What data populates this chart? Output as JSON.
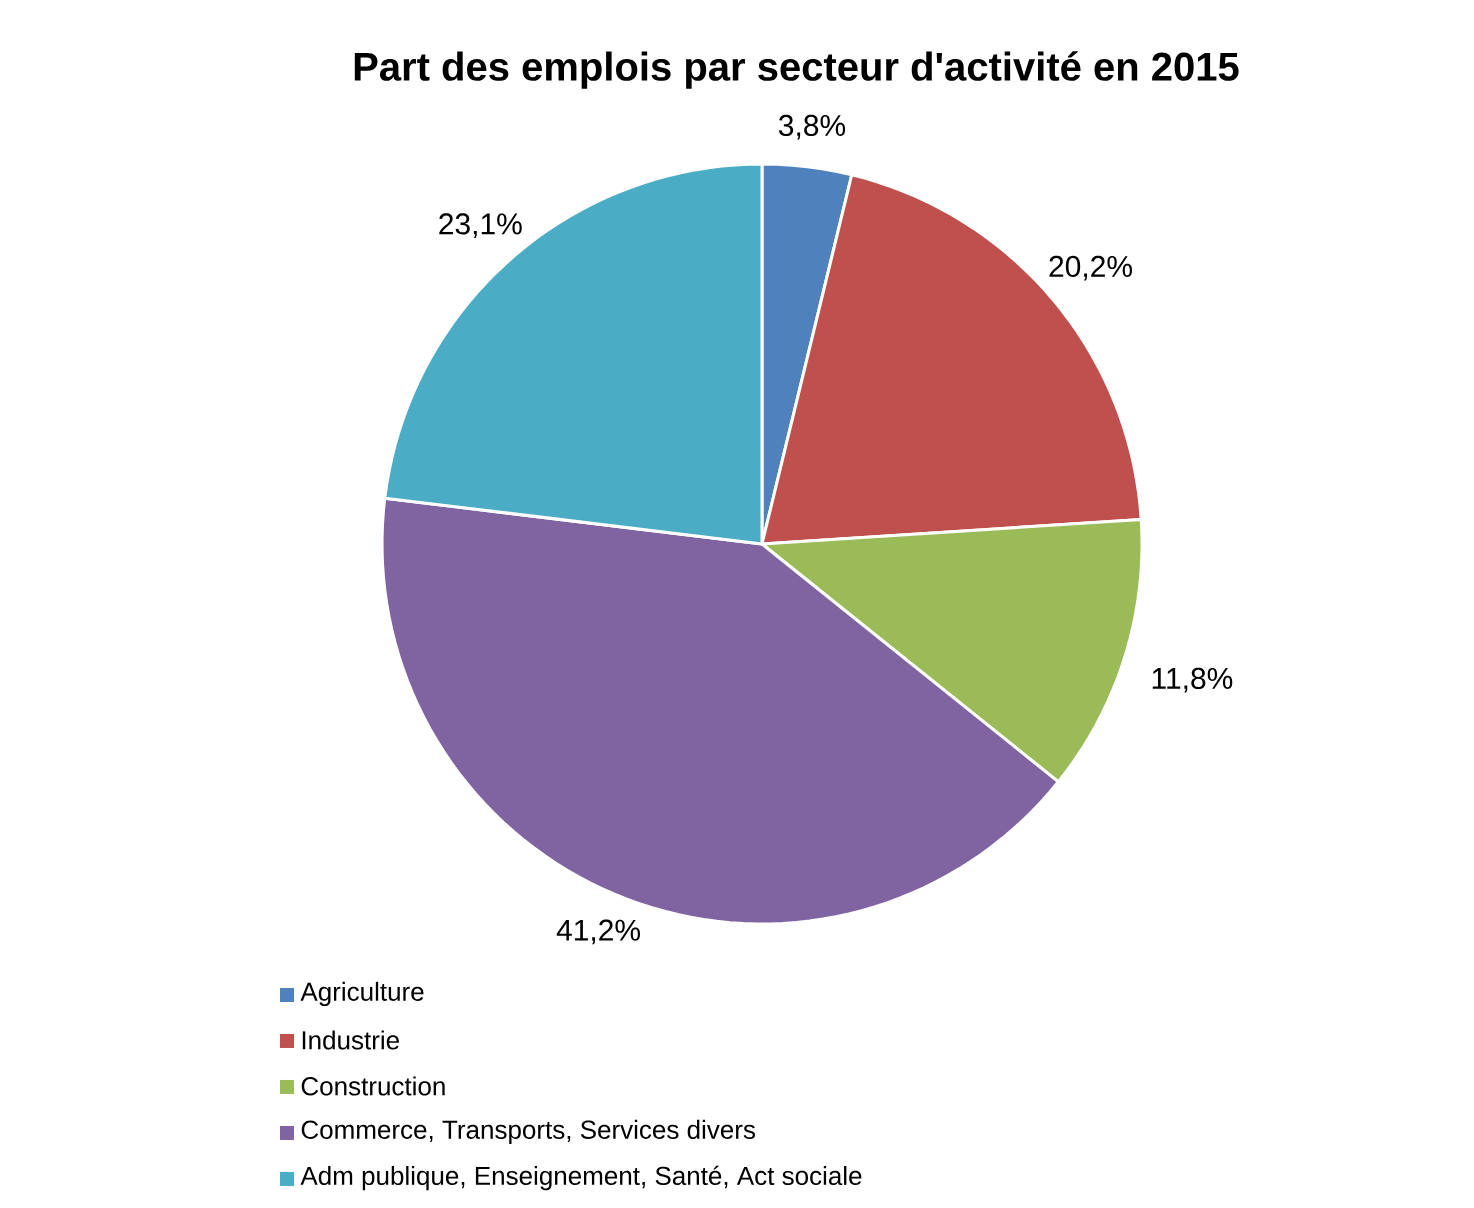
{
  "chart_data": {
    "type": "pie",
    "title": "Part des emplois par secteur d'activité en 2015",
    "categories": [
      "Agriculture",
      "Industrie",
      "Construction",
      "Commerce, Transports, Services divers",
      "Adm publique, Enseignement, Santé, Act sociale"
    ],
    "values": [
      3.8,
      20.2,
      11.8,
      41.2,
      23.1
    ],
    "colors": [
      "#4f81bd",
      "#c0504d",
      "#9bbb59",
      "#8064a2",
      "#4bacc6"
    ],
    "value_labels": [
      "3,8%",
      "20,2%",
      "11,8%",
      "41,2%",
      "23,1%"
    ],
    "legend": "bottom"
  }
}
